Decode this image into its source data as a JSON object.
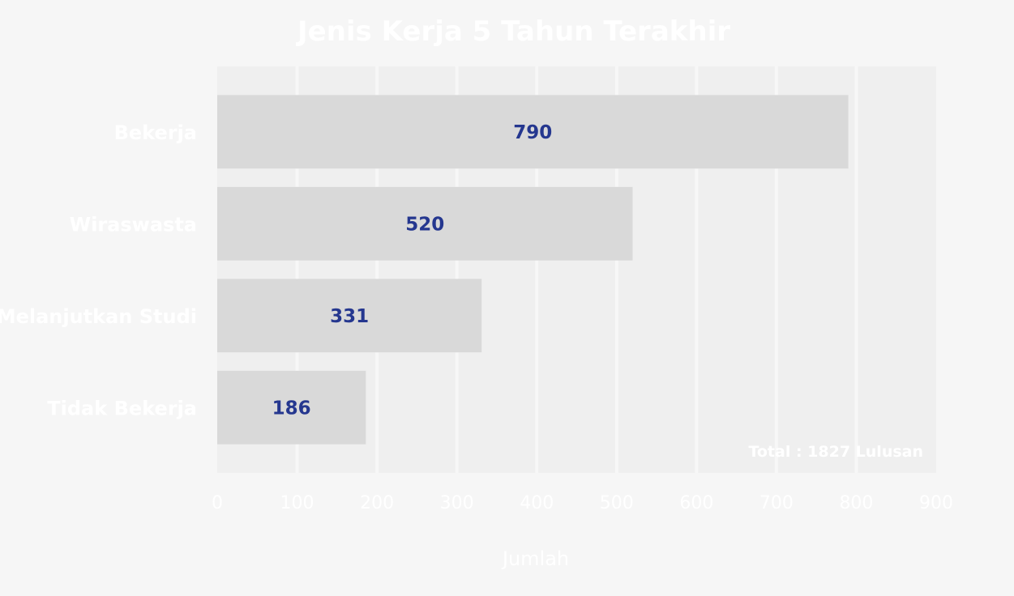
{
  "chart_data": {
    "type": "bar",
    "orientation": "horizontal",
    "title": "Jenis Kerja 5 Tahun Terakhir",
    "categories": [
      "Bekerja",
      "Wiraswasta",
      "Melanjutkan Studi",
      "Tidak Bekerja"
    ],
    "values": [
      790,
      520,
      331,
      186
    ],
    "value_labels": [
      "790",
      "520",
      "331",
      "186"
    ],
    "xlabel": "Jumlah",
    "ylabel": "",
    "xlim": [
      0,
      900
    ],
    "x_ticks": [
      "0",
      "100",
      "200",
      "300",
      "400",
      "500",
      "600",
      "700",
      "800",
      "900"
    ],
    "grid": true,
    "annotation": "Total :  1827 Lulusan",
    "colors": {
      "background": "#f6f6f6",
      "plot_background": "#efefef",
      "bar": "#d9d9d9",
      "value_text": "#25378f",
      "text": "#ffffff",
      "grid": "#f7f7f7"
    }
  }
}
